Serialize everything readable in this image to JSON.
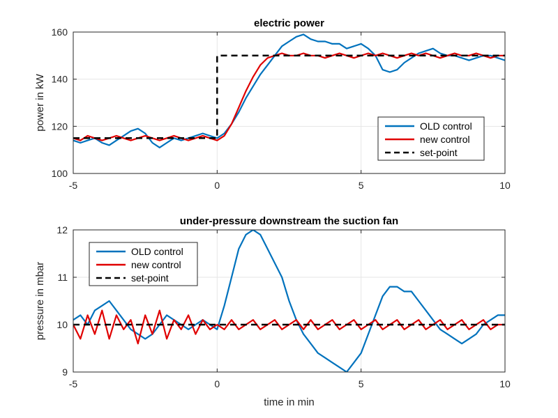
{
  "chart_data": [
    {
      "type": "line",
      "title": "electric power",
      "xlabel": "",
      "ylabel": "power in kW",
      "xlim": [
        -5,
        10
      ],
      "ylim": [
        100,
        160
      ],
      "xticks": [
        -5,
        0,
        5,
        10
      ],
      "yticks": [
        100,
        120,
        140,
        160
      ],
      "grid": true,
      "legend_position": "bottom-right",
      "series": [
        {
          "name": "OLD control",
          "color": "#0072BD",
          "x": [
            -5,
            -4.75,
            -4.5,
            -4.25,
            -4,
            -3.75,
            -3.5,
            -3.25,
            -3,
            -2.75,
            -2.5,
            -2.25,
            -2,
            -1.75,
            -1.5,
            -1.25,
            -1,
            -0.75,
            -0.5,
            -0.25,
            0,
            0.25,
            0.5,
            0.75,
            1,
            1.25,
            1.5,
            1.75,
            2,
            2.25,
            2.5,
            2.75,
            3,
            3.25,
            3.5,
            3.75,
            4,
            4.25,
            4.5,
            4.75,
            5,
            5.25,
            5.5,
            5.75,
            6,
            6.25,
            6.5,
            6.75,
            7,
            7.25,
            7.5,
            7.75,
            8,
            8.25,
            8.5,
            8.75,
            9,
            9.25,
            9.5,
            9.75,
            10
          ],
          "y": [
            114,
            113,
            114,
            115,
            113,
            112,
            114,
            116,
            118,
            119,
            117,
            113,
            111,
            113,
            115,
            114,
            115,
            116,
            117,
            116,
            115,
            117,
            121,
            126,
            132,
            137,
            142,
            146,
            150,
            154,
            156,
            158,
            159,
            157,
            156,
            156,
            155,
            155,
            153,
            154,
            155,
            153,
            150,
            144,
            143,
            144,
            147,
            149,
            151,
            152,
            153,
            151,
            150,
            150,
            149,
            148,
            149,
            150,
            150,
            149,
            148
          ]
        },
        {
          "name": "new control",
          "color": "#E00000",
          "x": [
            -5,
            -4.75,
            -4.5,
            -4.25,
            -4,
            -3.75,
            -3.5,
            -3.25,
            -3,
            -2.75,
            -2.5,
            -2.25,
            -2,
            -1.75,
            -1.5,
            -1.25,
            -1,
            -0.75,
            -0.5,
            -0.25,
            0,
            0.25,
            0.5,
            0.75,
            1,
            1.25,
            1.5,
            1.75,
            2,
            2.25,
            2.5,
            2.75,
            3,
            3.25,
            3.5,
            3.75,
            4,
            4.25,
            4.5,
            4.75,
            5,
            5.25,
            5.5,
            5.75,
            6,
            6.25,
            6.5,
            6.75,
            7,
            7.25,
            7.5,
            7.75,
            8,
            8.25,
            8.5,
            8.75,
            9,
            9.25,
            9.5,
            9.75,
            10
          ],
          "y": [
            115,
            114,
            116,
            115,
            114,
            115,
            116,
            115,
            114,
            115,
            116,
            115,
            114,
            115,
            116,
            115,
            114,
            115,
            116,
            115,
            114,
            116,
            121,
            128,
            135,
            141,
            146,
            149,
            150,
            151,
            150,
            150,
            151,
            150,
            150,
            149,
            150,
            151,
            150,
            149,
            150,
            151,
            150,
            151,
            150,
            149,
            150,
            151,
            150,
            151,
            150,
            149,
            150,
            151,
            150,
            150,
            151,
            150,
            149,
            150,
            150
          ]
        },
        {
          "name": "set-point",
          "color": "#000000",
          "dashed": true,
          "x": [
            -5,
            0,
            0,
            10
          ],
          "y": [
            115,
            115,
            150,
            150
          ]
        }
      ]
    },
    {
      "type": "line",
      "title": "under-pressure downstream the suction fan",
      "xlabel": "time in min",
      "ylabel": "pressure in mbar",
      "xlim": [
        -5,
        10
      ],
      "ylim": [
        9,
        12
      ],
      "xticks": [
        -5,
        0,
        5,
        10
      ],
      "yticks": [
        9,
        10,
        11,
        12
      ],
      "grid": true,
      "legend_position": "top-left",
      "series": [
        {
          "name": "OLD control",
          "color": "#0072BD",
          "x": [
            -5,
            -4.75,
            -4.5,
            -4.25,
            -4,
            -3.75,
            -3.5,
            -3.25,
            -3,
            -2.75,
            -2.5,
            -2.25,
            -2,
            -1.75,
            -1.5,
            -1.25,
            -1,
            -0.75,
            -0.5,
            -0.25,
            0,
            0.25,
            0.5,
            0.75,
            1,
            1.25,
            1.5,
            1.75,
            2,
            2.25,
            2.5,
            2.75,
            3,
            3.25,
            3.5,
            3.75,
            4,
            4.25,
            4.5,
            4.75,
            5,
            5.25,
            5.5,
            5.75,
            6,
            6.25,
            6.5,
            6.75,
            7,
            7.25,
            7.5,
            7.75,
            8,
            8.25,
            8.5,
            8.75,
            9,
            9.25,
            9.5,
            9.75,
            10
          ],
          "y": [
            10.1,
            10.2,
            10.0,
            10.3,
            10.4,
            10.5,
            10.3,
            10.1,
            9.9,
            9.8,
            9.7,
            9.8,
            10.0,
            10.2,
            10.1,
            10.0,
            9.9,
            10.0,
            10.1,
            10.0,
            9.9,
            10.4,
            11.0,
            11.6,
            11.9,
            12.0,
            11.9,
            11.6,
            11.3,
            11.0,
            10.5,
            10.1,
            9.8,
            9.6,
            9.4,
            9.3,
            9.2,
            9.1,
            9.0,
            9.2,
            9.4,
            9.8,
            10.2,
            10.6,
            10.8,
            10.8,
            10.7,
            10.7,
            10.5,
            10.3,
            10.1,
            9.9,
            9.8,
            9.7,
            9.6,
            9.7,
            9.8,
            10.0,
            10.1,
            10.2,
            10.2
          ]
        },
        {
          "name": "new control",
          "color": "#E00000",
          "x": [
            -5,
            -4.75,
            -4.5,
            -4.25,
            -4,
            -3.75,
            -3.5,
            -3.25,
            -3,
            -2.75,
            -2.5,
            -2.25,
            -2,
            -1.75,
            -1.5,
            -1.25,
            -1,
            -0.75,
            -0.5,
            -0.25,
            0,
            0.25,
            0.5,
            0.75,
            1,
            1.25,
            1.5,
            1.75,
            2,
            2.25,
            2.5,
            2.75,
            3,
            3.25,
            3.5,
            3.75,
            4,
            4.25,
            4.5,
            4.75,
            5,
            5.25,
            5.5,
            5.75,
            6,
            6.25,
            6.5,
            6.75,
            7,
            7.25,
            7.5,
            7.75,
            8,
            8.25,
            8.5,
            8.75,
            9,
            9.25,
            9.5,
            9.75,
            10
          ],
          "y": [
            10.0,
            9.7,
            10.2,
            9.8,
            10.3,
            9.7,
            10.2,
            9.9,
            10.1,
            9.6,
            10.2,
            9.8,
            10.3,
            9.7,
            10.1,
            9.9,
            10.2,
            9.8,
            10.1,
            9.9,
            10.0,
            9.9,
            10.1,
            9.9,
            10.0,
            10.1,
            9.9,
            10.0,
            10.1,
            9.9,
            10.0,
            10.1,
            9.9,
            10.1,
            9.9,
            10.0,
            10.1,
            9.9,
            10.0,
            10.1,
            9.9,
            10.0,
            10.1,
            9.9,
            10.0,
            10.1,
            9.9,
            10.0,
            10.1,
            9.9,
            10.0,
            10.1,
            9.9,
            10.0,
            10.1,
            9.9,
            10.0,
            10.1,
            9.9,
            10.0,
            10.0
          ]
        },
        {
          "name": "set-point",
          "color": "#000000",
          "dashed": true,
          "x": [
            -5,
            10
          ],
          "y": [
            10,
            10
          ]
        }
      ]
    }
  ]
}
